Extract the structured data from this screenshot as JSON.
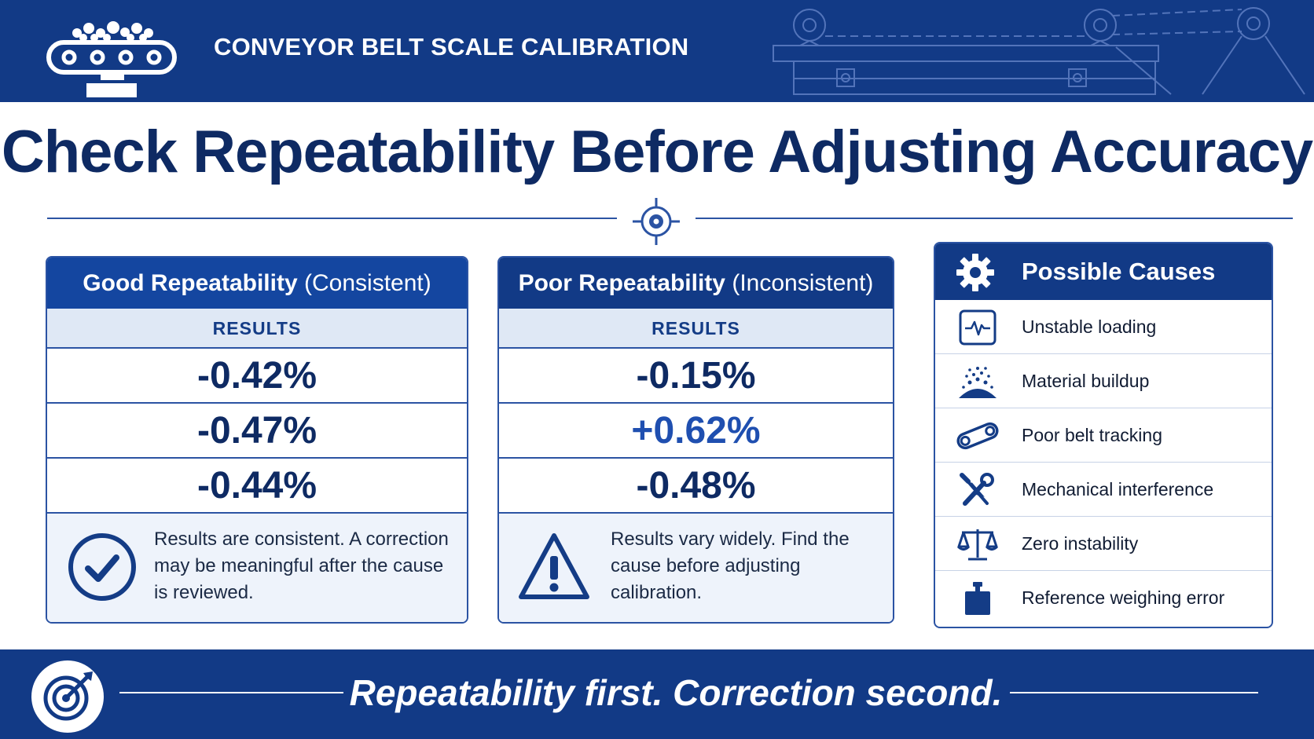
{
  "header": {
    "title": "CONVEYOR BELT SCALE CALIBRATION",
    "icon": "conveyor-scale-icon"
  },
  "main_title": "Check Repeatability Before Adjusting Accuracy",
  "panels": {
    "good": {
      "title": "Good Repeatability",
      "qualifier": "(Consistent)",
      "results_label": "RESULTS",
      "results": [
        "-0.42%",
        "-0.47%",
        "-0.44%"
      ],
      "note": "Results are consistent. A correction may be meaningful after the cause is reviewed.",
      "icon": "check-circle-icon"
    },
    "poor": {
      "title": "Poor Repeatability",
      "qualifier": "(Inconsistent)",
      "results_label": "RESULTS",
      "results": [
        "-0.15%",
        "+0.62%",
        "-0.48%"
      ],
      "note": "Results vary widely. Find the cause before adjusting calibration.",
      "icon": "warning-triangle-icon"
    }
  },
  "causes": {
    "title": "Possible Causes",
    "icon": "gear-icon",
    "items": [
      {
        "label": "Unstable loading",
        "icon": "waveform-icon"
      },
      {
        "label": "Material buildup",
        "icon": "material-pile-icon"
      },
      {
        "label": "Poor belt tracking",
        "icon": "belt-icon"
      },
      {
        "label": "Mechanical interference",
        "icon": "wrench-screwdriver-icon"
      },
      {
        "label": "Zero instability",
        "icon": "balance-scale-icon"
      },
      {
        "label": "Reference weighing error",
        "icon": "weight-icon"
      }
    ]
  },
  "footer": {
    "text": "Repeatability first.  Correction second.",
    "icon": "bullseye-arrow-icon"
  },
  "colors": {
    "navy": "#123a86",
    "panel_blue": "#1446a0",
    "text_dark": "#0e2a63",
    "results_band": "#dfe8f5",
    "note_bg": "#eef3fb"
  }
}
